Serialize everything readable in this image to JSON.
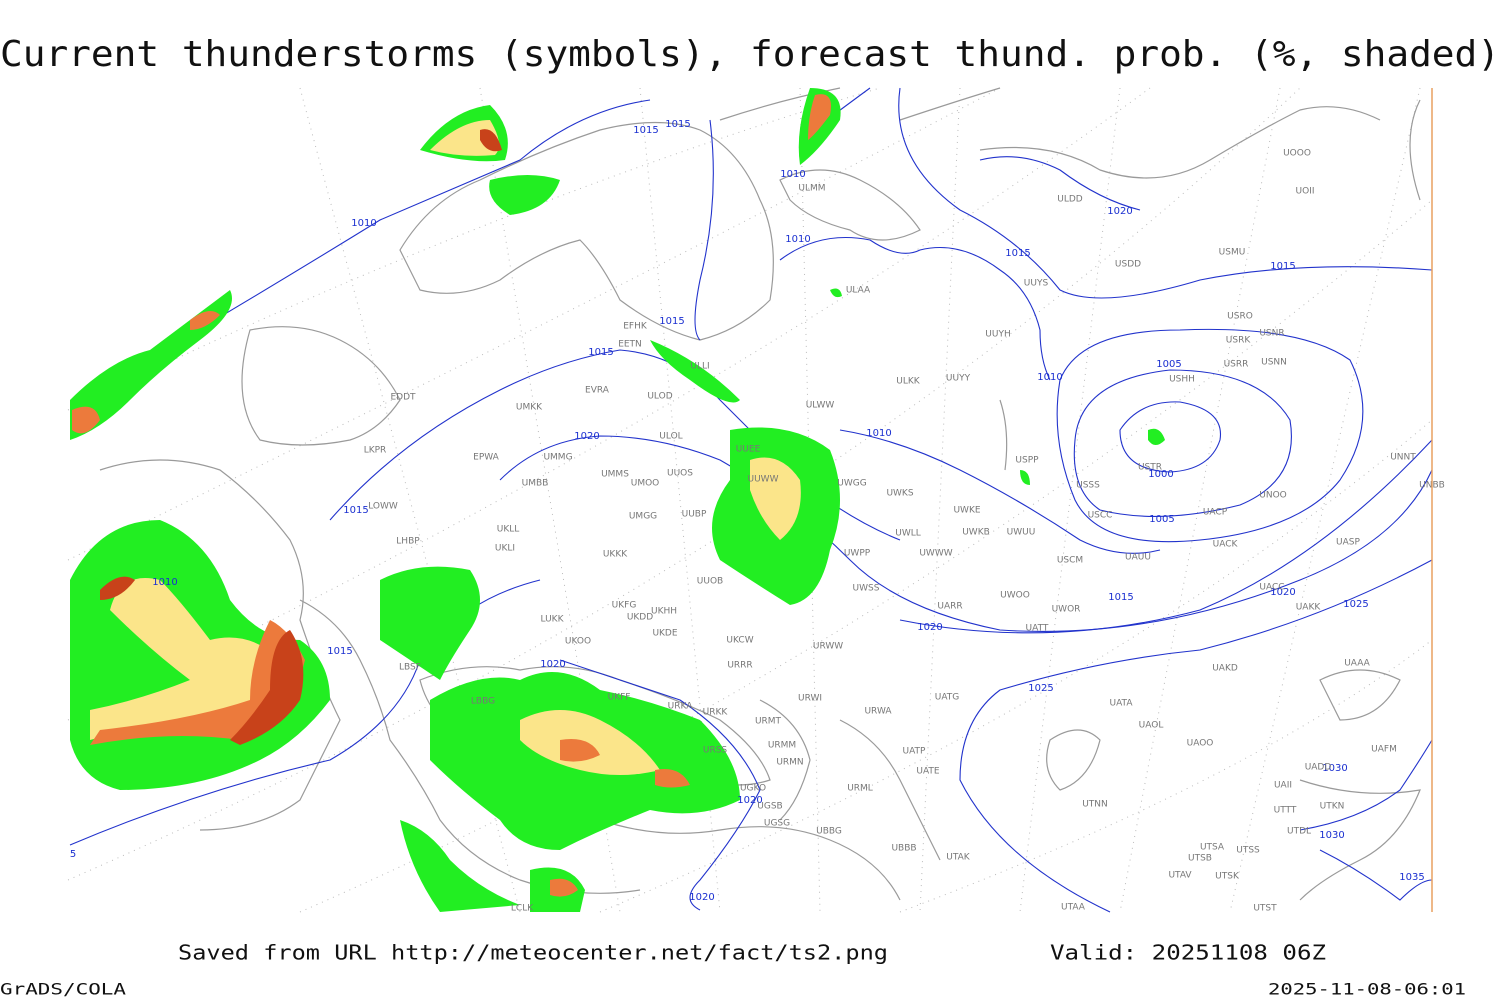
{
  "header": {
    "title": "Current thunderstorms (symbols), forecast thund. prob. (%, shaded)"
  },
  "footer": {
    "source": "Saved from URL http://meteocenter.net/fact/ts2.png",
    "valid": "Valid: 20251108 06Z",
    "software": "GrADS/COLA",
    "timestamp": "2025-11-08-06:01"
  },
  "isobar_labels": [
    "1015",
    "1015",
    "1010",
    "1010",
    "1010",
    "1015",
    "1020",
    "1015",
    "1015",
    "1015",
    "1010",
    "1005",
    "1000",
    "1005",
    "1010",
    "1020",
    "1015",
    "1010",
    "1015",
    "1020",
    "1020",
    "1015",
    "1020",
    "1025",
    "1025",
    "1030",
    "1030",
    "1035",
    "1020",
    "1020",
    "5"
  ],
  "stations": [
    "ULMM",
    "ULAA",
    "UUYH",
    "ULKK",
    "UUYY",
    "ULWW",
    "UUYS",
    "USDD",
    "USMU",
    "ULDD",
    "UOOO",
    "UOII",
    "USRO",
    "USRK",
    "USNR",
    "USRR",
    "USNN",
    "USHH",
    "USPP",
    "USSS",
    "USTR",
    "USCC",
    "UNOO",
    "UNNT",
    "UNBB",
    "UACP",
    "UACK",
    "UASP",
    "UAUU",
    "USCM",
    "UWUU",
    "UWKE",
    "UWKS",
    "UWGG",
    "UWPP",
    "UWSS",
    "UWLL",
    "UWKB",
    "UWWW",
    "UARR",
    "UWOO",
    "UWOR",
    "UATT",
    "UACC",
    "UAKK",
    "UAKD",
    "UAAA",
    "UATG",
    "UATA",
    "UAOL",
    "UAOO",
    "UAFM",
    "UADD",
    "UAII",
    "UTTT",
    "UTKN",
    "UTDL",
    "UTNN",
    "UTSA",
    "UTSS",
    "UTSB",
    "UTAV",
    "UTSK",
    "UTST",
    "UTAA",
    "UTAK",
    "UATP",
    "UATE",
    "URML",
    "URWA",
    "URWI",
    "URMT",
    "URMM",
    "URMN",
    "URRR",
    "UKCW",
    "URWW",
    "UUOB",
    "UKKK",
    "UUBP",
    "UUOS",
    "UMMS",
    "UMOO",
    "UMGG",
    "UMBB",
    "UMMG",
    "EPWA",
    "LKPR",
    "LOWW",
    "LHBP",
    "UKLL",
    "UKLI",
    "LUKK",
    "UKOO",
    "UKHH",
    "UKDD",
    "UKFG",
    "UKDE",
    "UKFF",
    "URKA",
    "URKK",
    "URSS",
    "UGSB",
    "UGSG",
    "UGKO",
    "UBBG",
    "UBBB",
    "LBSF",
    "LBBG",
    "EDDT",
    "EVRA",
    "ULOL",
    "ULOD",
    "UMKK",
    "EETN",
    "EFHK",
    "ULLI",
    "UUEE",
    "UUWW",
    "LCLK"
  ]
}
